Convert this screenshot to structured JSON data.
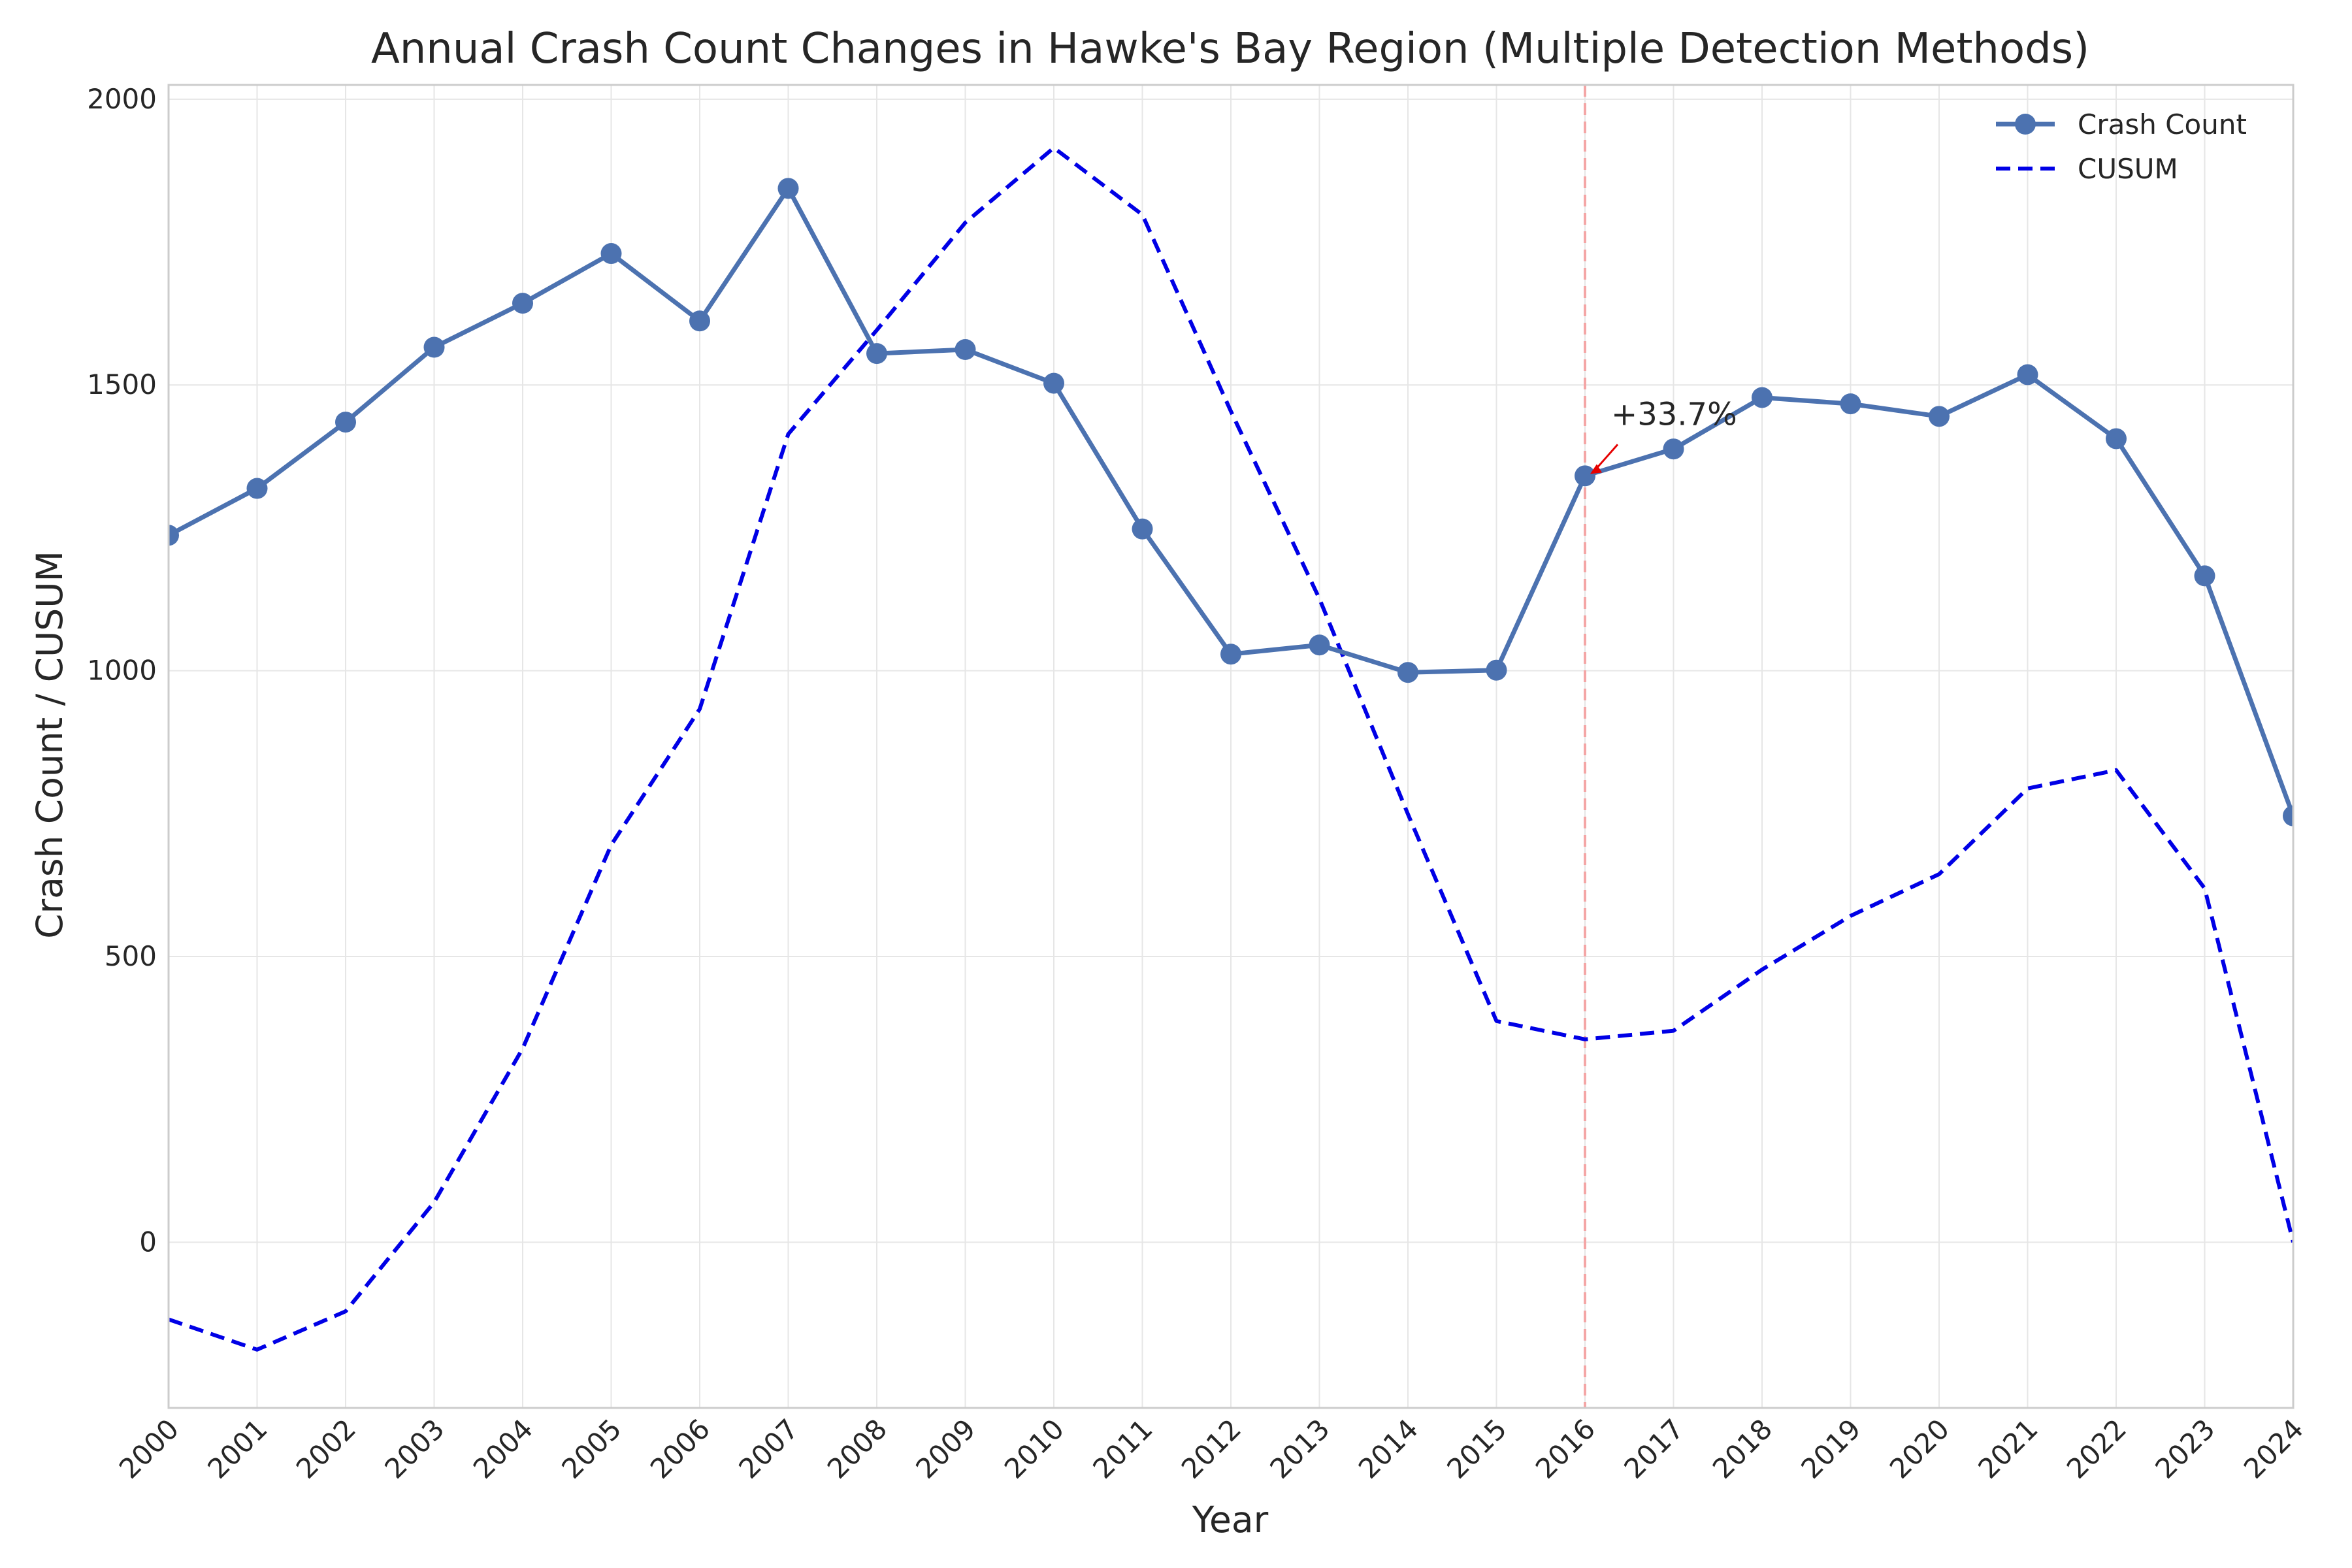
{
  "chart_data": {
    "type": "line",
    "title": "Annual Crash Count Changes in Hawke's Bay Region (Multiple Detection Methods)",
    "xlabel": "Year",
    "ylabel": "Crash Count / CUSUM",
    "x": [
      "2000",
      "2001",
      "2002",
      "2003",
      "2004",
      "2005",
      "2006",
      "2007",
      "2008",
      "2009",
      "2010",
      "2011",
      "2012",
      "2013",
      "2014",
      "2015",
      "2016",
      "2017",
      "2018",
      "2019",
      "2020",
      "2021",
      "2022",
      "2023",
      "2024"
    ],
    "xlim": [
      2000,
      2024
    ],
    "ylim": [
      -290,
      2025
    ],
    "yticks": [
      0,
      500,
      1000,
      1500,
      2000
    ],
    "grid": true,
    "legend_position": "top-right",
    "series": [
      {
        "name": "Crash Count",
        "style": "solid-with-markers",
        "color": "#4c72b0",
        "values": [
          1237,
          1319,
          1435,
          1566,
          1643,
          1730,
          1612,
          1844,
          1555,
          1562,
          1503,
          1248,
          1029,
          1045,
          997,
          1001,
          1341,
          1388,
          1478,
          1467,
          1445,
          1518,
          1406,
          1166,
          746
        ]
      },
      {
        "name": "CUSUM",
        "style": "dashed",
        "color": "#0000e6",
        "values": [
          -135,
          -188,
          -121,
          70,
          339,
          695,
          933,
          1414,
          1596,
          1784,
          1915,
          1798,
          1454,
          1126,
          749,
          387,
          355,
          370,
          477,
          571,
          644,
          794,
          826,
          619,
          0
        ]
      }
    ],
    "changepoint": {
      "x": 2016,
      "color": "#f4a6a6"
    },
    "annotation": {
      "text": "+33.7%",
      "x": 2016,
      "y": 1341,
      "arrow_color": "#e60000"
    }
  }
}
